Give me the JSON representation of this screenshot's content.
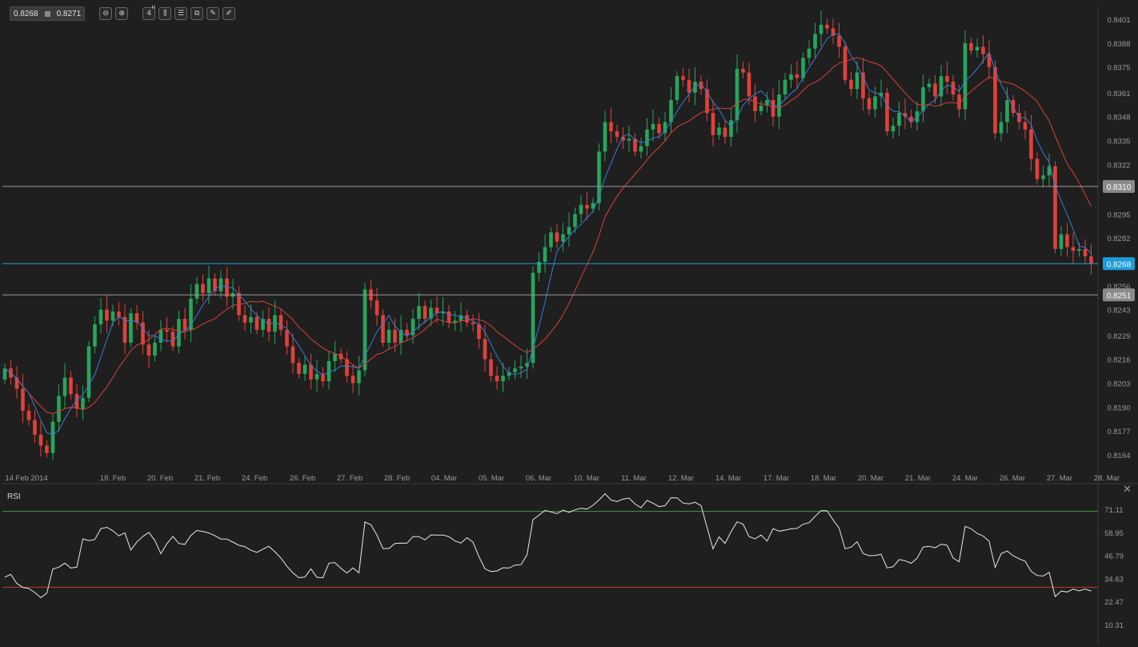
{
  "toolbar": {
    "bid": "0.8268",
    "ask": "0.8271",
    "timeframe": "4",
    "timeframe_unit": "H",
    "buttons": [
      {
        "name": "zoom-out-icon",
        "glyph": "⊖"
      },
      {
        "name": "zoom-in-icon",
        "glyph": "⊕"
      },
      {
        "name": "timeframe-button",
        "glyph": "4"
      },
      {
        "name": "candlestick-type-icon",
        "glyph": "⫼"
      },
      {
        "name": "indicators-icon",
        "glyph": "☰"
      },
      {
        "name": "templates-icon",
        "glyph": "⧉"
      },
      {
        "name": "draw-tool-icon",
        "glyph": "✎"
      },
      {
        "name": "pencil-icon",
        "glyph": "✐"
      }
    ]
  },
  "rsi_panel": {
    "label": "RSI",
    "close_glyph": "✕"
  },
  "colors": {
    "background": "#1f1f1f",
    "bull": "#26a65b",
    "bear": "#e0413a",
    "fast_ma": "#3a7bd5",
    "slow_ma": "#d7423a",
    "current_price": "#1e9bd7",
    "horizontal_line": "#9a9a9a",
    "rsi_line": "#e8e8e8",
    "rsi_upper": "#3f9c4a",
    "rsi_lower": "#c0392b"
  },
  "chart_data": [
    {
      "type": "candlestick",
      "instrument_price_scale": "0.8150 – 0.8410",
      "ylim": [
        0.8151,
        0.8408
      ],
      "x_labels": [
        "14 Feb 2014",
        "18. Feb",
        "20. Feb",
        "21. Feb",
        "24. Feb",
        "26. Feb",
        "27. Feb",
        "28. Feb",
        "04. Mar",
        "05. Mar",
        "06. Mar",
        "10. Mar",
        "11. Mar",
        "12. Mar",
        "14. Mar",
        "17. Mar",
        "18. Mar",
        "20. Mar",
        "21. Mar",
        "24. Mar",
        "26. Mar",
        "27. Mar",
        "28. Mar"
      ],
      "y_ticks": [
        "0.8401",
        "0.8388",
        "0.8375",
        "0.8361",
        "0.8348",
        "0.8335",
        "0.8322",
        "0.8310",
        "0.8295",
        "0.8282",
        "0.8268",
        "0.8256",
        "0.8251",
        "0.8243",
        "0.8229",
        "0.8216",
        "0.8203",
        "0.8190",
        "0.8177",
        "0.8164"
      ],
      "horizontal_levels": [
        {
          "price": 0.831,
          "label": "0.8310",
          "style": "resistance"
        },
        {
          "price": 0.8268,
          "label": "0.8268",
          "style": "current"
        },
        {
          "price": 0.8251,
          "label": "0.8251",
          "style": "support"
        }
      ],
      "closes": [
        0.8211,
        0.8206,
        0.82,
        0.8188,
        0.8183,
        0.8175,
        0.8169,
        0.8165,
        0.8182,
        0.8196,
        0.8206,
        0.8197,
        0.8189,
        0.8195,
        0.8223,
        0.8235,
        0.8243,
        0.8237,
        0.8242,
        0.8239,
        0.8225,
        0.8241,
        0.8236,
        0.8224,
        0.8218,
        0.8225,
        0.8232,
        0.8231,
        0.8223,
        0.8238,
        0.8232,
        0.8249,
        0.8257,
        0.8252,
        0.826,
        0.8253,
        0.826,
        0.825,
        0.8252,
        0.824,
        0.8236,
        0.8239,
        0.8232,
        0.8238,
        0.8231,
        0.824,
        0.8232,
        0.8223,
        0.8214,
        0.8208,
        0.8213,
        0.8205,
        0.8208,
        0.8204,
        0.8215,
        0.8219,
        0.8216,
        0.8207,
        0.8203,
        0.821,
        0.8254,
        0.8248,
        0.824,
        0.8225,
        0.8232,
        0.8225,
        0.8232,
        0.8229,
        0.8238,
        0.8245,
        0.8238,
        0.8244,
        0.8241,
        0.8242,
        0.8236,
        0.8237,
        0.824,
        0.8236,
        0.8235,
        0.8227,
        0.8216,
        0.8207,
        0.8204,
        0.8207,
        0.8209,
        0.8211,
        0.8212,
        0.8214,
        0.8263,
        0.8269,
        0.8277,
        0.8285,
        0.828,
        0.8284,
        0.8288,
        0.8295,
        0.83,
        0.8298,
        0.8301,
        0.8329,
        0.8345,
        0.834,
        0.8337,
        0.8335,
        0.8336,
        0.8329,
        0.8332,
        0.8341,
        0.8344,
        0.8339,
        0.8345,
        0.8357,
        0.837,
        0.8368,
        0.8361,
        0.8367,
        0.8363,
        0.835,
        0.8338,
        0.8342,
        0.8337,
        0.8346,
        0.8374,
        0.8372,
        0.8359,
        0.8351,
        0.8354,
        0.8357,
        0.8348,
        0.836,
        0.8368,
        0.8371,
        0.8369,
        0.838,
        0.8385,
        0.8393,
        0.8398,
        0.8396,
        0.8392,
        0.8386,
        0.8368,
        0.8363,
        0.8372,
        0.8358,
        0.8352,
        0.8359,
        0.8361,
        0.834,
        0.8343,
        0.835,
        0.8348,
        0.8345,
        0.8351,
        0.8364,
        0.8366,
        0.8359,
        0.837,
        0.8367,
        0.836,
        0.8352,
        0.8388,
        0.8384,
        0.8386,
        0.8382,
        0.8375,
        0.8339,
        0.8345,
        0.8357,
        0.835,
        0.8345,
        0.8341,
        0.8325,
        0.8314,
        0.8316,
        0.8321,
        0.8276,
        0.8284,
        0.8277,
        0.8275,
        0.8276,
        0.8272,
        0.8268
      ]
    },
    {
      "type": "line",
      "title": "RSI",
      "ylim": [
        5,
        84
      ],
      "y_ticks": [
        "71.11",
        "58.95",
        "46.79",
        "34.63",
        "22.47",
        "10.31"
      ],
      "levels": [
        70,
        30
      ],
      "values": [
        35.3,
        36.8,
        32.0,
        29.9,
        29.3,
        27.2,
        24.5,
        26.9,
        39.6,
        40.6,
        42.7,
        40.1,
        40.6,
        55.5,
        54.6,
        55.2,
        60.9,
        61.6,
        59.8,
        57.1,
        58.7,
        49.6,
        53.9,
        56.8,
        58.9,
        54.7,
        47.7,
        52.9,
        56.8,
        53.1,
        52.6,
        57.3,
        59.9,
        59.4,
        58.6,
        57.2,
        55.4,
        55.4,
        53.8,
        52.1,
        51.4,
        49.5,
        48.4,
        50.1,
        51.6,
        48.7,
        45.4,
        41.1,
        37.6,
        35.0,
        35.4,
        39.7,
        35.2,
        35.0,
        42.7,
        43.0,
        40.0,
        37.5,
        40.2,
        37.6,
        64.4,
        62.9,
        57.5,
        50.4,
        50.4,
        53.1,
        53.3,
        53.2,
        56.7,
        56.7,
        55.0,
        57.6,
        57.5,
        57.5,
        56.7,
        54.4,
        53.3,
        56.1,
        53.8,
        46.1,
        39.7,
        38.3,
        38.6,
        40.3,
        40.1,
        41.7,
        41.9,
        47.1,
        65.6,
        68.0,
        70.5,
        69.7,
        68.8,
        70.7,
        69.5,
        70.8,
        71.6,
        71.2,
        73.2,
        76.0,
        79.3,
        76.0,
        75.2,
        76.5,
        77.0,
        73.9,
        71.9,
        75.8,
        74.3,
        72.5,
        73.0,
        77.2,
        77.1,
        74.4,
        74.0,
        74.8,
        73.0,
        61.6,
        50.2,
        56.6,
        53.1,
        59.3,
        64.5,
        63.3,
        56.7,
        55.5,
        57.5,
        54.3,
        60.9,
        59.6,
        60.1,
        60.8,
        61.0,
        63.2,
        64.0,
        67.4,
        70.4,
        70.3,
        65.5,
        61.2,
        50.3,
        51.2,
        54.0,
        47.8,
        46.6,
        46.8,
        47.4,
        40.2,
        40.8,
        44.6,
        44.0,
        42.6,
        45.3,
        51.2,
        51.6,
        50.8,
        52.7,
        52.1,
        45.4,
        43.4,
        62.1,
        60.8,
        58.4,
        57.0,
        54.2,
        40.4,
        47.7,
        49.1,
        46.6,
        45.0,
        43.7,
        38.4,
        36.2,
        35.9,
        37.9,
        25.1,
        28.0,
        27.5,
        29.0,
        28.1,
        29.0,
        28.0
      ]
    }
  ]
}
